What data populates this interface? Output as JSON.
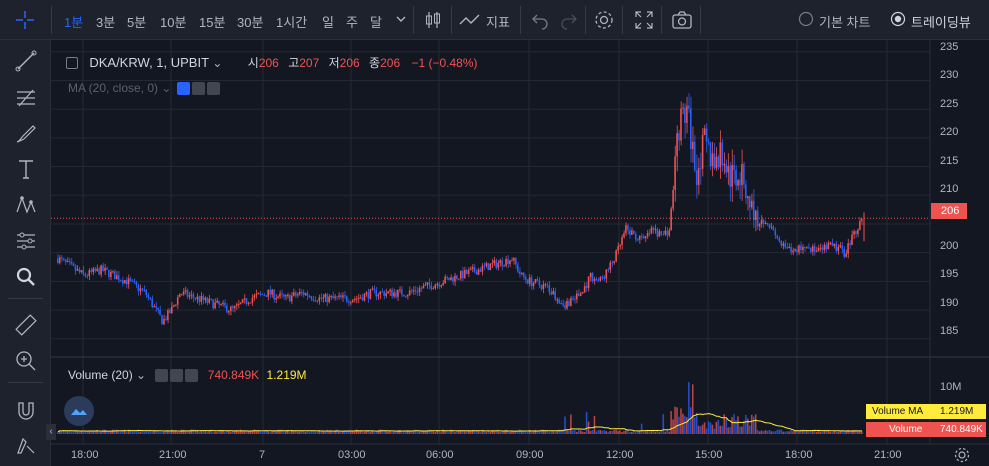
{
  "toolbar": {
    "timeframes": [
      "1분",
      "3분",
      "5분",
      "10분",
      "15분",
      "30분",
      "1시간",
      "일",
      "주",
      "달"
    ],
    "active_timeframe": "1분",
    "indicators_label": "지표",
    "basic_chart_label": "기본 차트",
    "tradingview_label": "트레이딩뷰"
  },
  "legend": {
    "symbol": "DKA/KRW, 1, UPBIT",
    "open_label": "시",
    "open_value": "206",
    "high_label": "고",
    "high_value": "207",
    "low_label": "저",
    "low_value": "206",
    "close_label": "종",
    "close_value": "206",
    "change": "−1 (−0.48%)",
    "ma_label": "MA (20, close, 0)"
  },
  "volume_legend": {
    "label": "Volume (20)",
    "value": "740.849K",
    "ma_value": "1.219M"
  },
  "price_axis": {
    "ticks": [
      "235",
      "230",
      "225",
      "220",
      "215",
      "210",
      "205",
      "200",
      "195",
      "190",
      "185"
    ],
    "last_price": "206",
    "volume_tick": "10M"
  },
  "volume_tags": {
    "ma_label": "Volume MA",
    "ma_value": "1.219M",
    "vol_label": "Volume",
    "vol_value": "740.849K"
  },
  "time_axis": [
    "18:00",
    "21:00",
    "7",
    "03:00",
    "06:00",
    "09:00",
    "12:00",
    "15:00",
    "18:00",
    "21:00"
  ],
  "colors": {
    "up": "#ef5350",
    "down": "#2962ff",
    "accent": "#2962ff",
    "ma": "#ffeb3b"
  },
  "chart_data": {
    "type": "candlestick",
    "symbol": "DKA/KRW",
    "ylim": [
      182,
      236
    ],
    "x": [
      "18:00",
      "21:00",
      "7",
      "03:00",
      "06:00",
      "09:00",
      "12:00",
      "15:00",
      "18:00",
      "21:00"
    ],
    "close_profile": [
      [
        0,
        199
      ],
      [
        3,
        196
      ],
      [
        5,
        197
      ],
      [
        8,
        195
      ],
      [
        10,
        193
      ],
      [
        12,
        188
      ],
      [
        13,
        190
      ],
      [
        14,
        193
      ],
      [
        16,
        192
      ],
      [
        18,
        191
      ],
      [
        20,
        190
      ],
      [
        22,
        192
      ],
      [
        24,
        193
      ],
      [
        26,
        192
      ],
      [
        28,
        193
      ],
      [
        30,
        192
      ],
      [
        32,
        192
      ],
      [
        34,
        192
      ],
      [
        36,
        193
      ],
      [
        38,
        193
      ],
      [
        40,
        193
      ],
      [
        42,
        194
      ],
      [
        44,
        195
      ],
      [
        46,
        196
      ],
      [
        48,
        197
      ],
      [
        50,
        198
      ],
      [
        52,
        199
      ],
      [
        53,
        196
      ],
      [
        54,
        195
      ],
      [
        56,
        194
      ],
      [
        58,
        191
      ],
      [
        60,
        193
      ],
      [
        61,
        196
      ],
      [
        62,
        195
      ],
      [
        63,
        197
      ],
      [
        64,
        200
      ],
      [
        65,
        204
      ],
      [
        66,
        203
      ],
      [
        67,
        202
      ],
      [
        68,
        204
      ],
      [
        69,
        203
      ],
      [
        70,
        204
      ],
      [
        71,
        222
      ],
      [
        72,
        225
      ],
      [
        73,
        214
      ],
      [
        74,
        219
      ],
      [
        75,
        216
      ],
      [
        76,
        217
      ],
      [
        77,
        213
      ],
      [
        78,
        214
      ],
      [
        79,
        210
      ],
      [
        80,
        205
      ],
      [
        81,
        206
      ],
      [
        82,
        203
      ],
      [
        83,
        201
      ],
      [
        84,
        200
      ],
      [
        85,
        201
      ],
      [
        86,
        201
      ],
      [
        87,
        200
      ],
      [
        88,
        201
      ],
      [
        89,
        201
      ],
      [
        90,
        200
      ],
      [
        91,
        203
      ],
      [
        92,
        206
      ]
    ],
    "volume_axis_max": "10M",
    "last_volume": "740.849K",
    "volume_ma": "1.219M"
  }
}
